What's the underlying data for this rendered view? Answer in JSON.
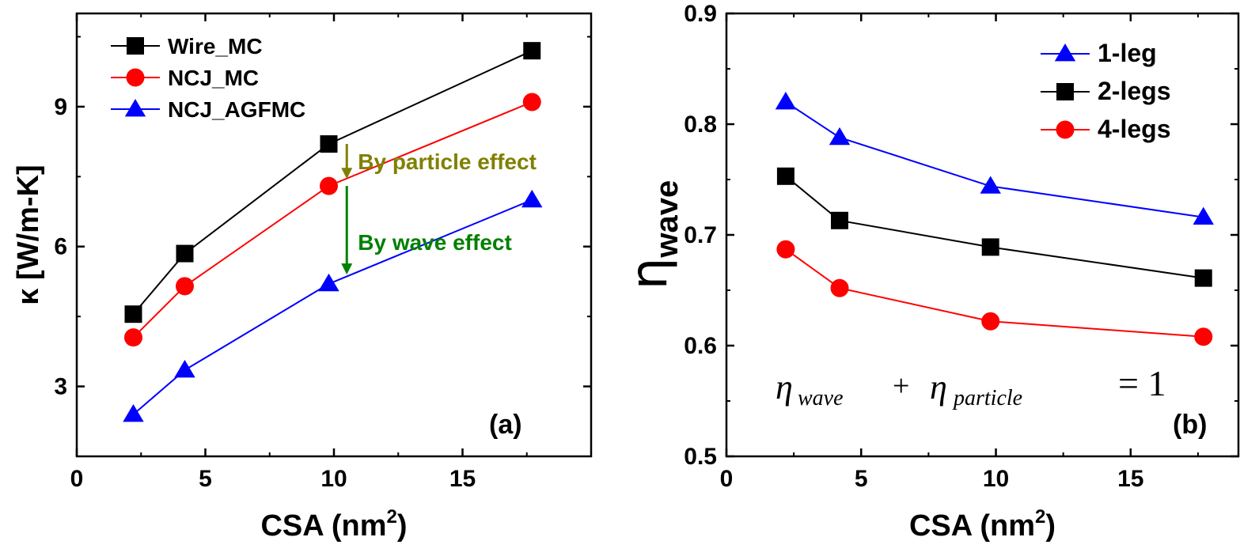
{
  "chart_data": [
    {
      "type": "line",
      "panel_label": "(a)",
      "xlabel": "CSA (nm",
      "xlabel_sup": "2",
      "xlabel_close": ")",
      "ylabel": "κ [W/m-K]",
      "xlim": [
        0,
        20
      ],
      "ylim": [
        1.5,
        11
      ],
      "xticks": [
        0,
        5,
        10,
        15
      ],
      "yticks": [
        3,
        6,
        9
      ],
      "legend_position": "top-left",
      "series": [
        {
          "name": "Wire_MC",
          "color": "#000000",
          "marker": "square",
          "x": [
            2.2,
            4.2,
            9.8,
            17.7
          ],
          "y": [
            4.55,
            5.85,
            8.2,
            10.2
          ]
        },
        {
          "name": "NCJ_MC",
          "color": "#ff0000",
          "marker": "circle",
          "x": [
            2.2,
            4.2,
            9.8,
            17.7
          ],
          "y": [
            4.05,
            5.15,
            7.3,
            9.1
          ]
        },
        {
          "name": "NCJ_AGFMC",
          "color": "#0000ff",
          "marker": "triangle",
          "x": [
            2.2,
            4.2,
            9.8,
            17.7
          ],
          "y": [
            2.4,
            3.35,
            5.2,
            7.0
          ]
        }
      ],
      "annotations": [
        {
          "text": "By particle effect",
          "color": "#808000",
          "x": 10.5,
          "y_from": 8.2,
          "y_to": 7.45
        },
        {
          "text": "By wave effect",
          "color": "#008000",
          "x": 10.5,
          "y_from": 7.3,
          "y_to": 5.4
        }
      ]
    },
    {
      "type": "line",
      "panel_label": "(b)",
      "xlabel": "CSA (nm",
      "xlabel_sup": "2",
      "xlabel_close": ")",
      "ylabel": "η",
      "ylabel_sub": "wave",
      "xlim": [
        0,
        19
      ],
      "ylim": [
        0.5,
        0.9
      ],
      "xticks": [
        0,
        5,
        10,
        15
      ],
      "yticks": [
        0.5,
        0.6,
        0.7,
        0.8,
        0.9
      ],
      "legend_position": "top-right",
      "series": [
        {
          "name": "1-leg",
          "color": "#0000ff",
          "marker": "triangle",
          "x": [
            2.2,
            4.2,
            9.8,
            17.7
          ],
          "y": [
            0.82,
            0.788,
            0.744,
            0.716
          ]
        },
        {
          "name": "2-legs",
          "color": "#000000",
          "marker": "square",
          "x": [
            2.2,
            4.2,
            9.8,
            17.7
          ],
          "y": [
            0.753,
            0.713,
            0.689,
            0.661
          ]
        },
        {
          "name": "4-legs",
          "color": "#ff0000",
          "marker": "circle",
          "x": [
            2.2,
            4.2,
            9.8,
            17.7
          ],
          "y": [
            0.687,
            0.652,
            0.622,
            0.608
          ]
        }
      ],
      "equation": {
        "eta": "η",
        "sub1": "wave",
        "plus": "+",
        "sub2": "particle",
        "equals": "= 1"
      }
    }
  ]
}
